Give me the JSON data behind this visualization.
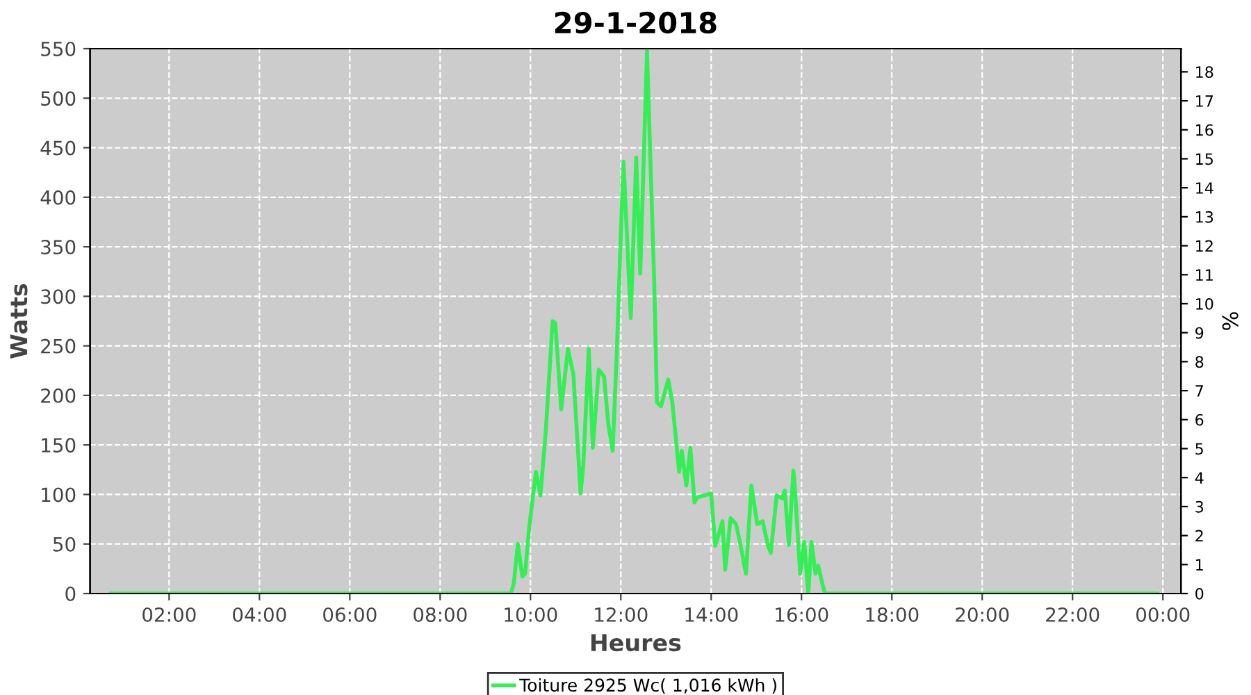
{
  "chart_data": {
    "type": "line",
    "title": "29-1-2018",
    "xlabel": "Heures",
    "ylabel": "Watts",
    "y2label": "%",
    "xlim": [
      0.25,
      24.4
    ],
    "ylim": [
      0,
      550
    ],
    "y2lim": [
      0,
      18.8
    ],
    "xticks": [
      {
        "value": 2,
        "label": "02:00"
      },
      {
        "value": 4,
        "label": "04:00"
      },
      {
        "value": 6,
        "label": "06:00"
      },
      {
        "value": 8,
        "label": "08:00"
      },
      {
        "value": 10,
        "label": "10:00"
      },
      {
        "value": 12,
        "label": "12:00"
      },
      {
        "value": 14,
        "label": "14:00"
      },
      {
        "value": 16,
        "label": "16:00"
      },
      {
        "value": 18,
        "label": "18:00"
      },
      {
        "value": 20,
        "label": "20:00"
      },
      {
        "value": 22,
        "label": "22:00"
      },
      {
        "value": 24,
        "label": "00:00"
      }
    ],
    "yticks": [
      0,
      50,
      100,
      150,
      200,
      250,
      300,
      350,
      400,
      450,
      500,
      550
    ],
    "y2ticks": [
      0,
      1,
      2,
      3,
      4,
      5,
      6,
      7,
      8,
      9,
      10,
      11,
      12,
      13,
      14,
      15,
      16,
      17,
      18
    ],
    "grid": true,
    "legend": "bottom",
    "marker": "none",
    "line_style": "solid",
    "series": [
      {
        "name": "Toiture 2925 Wc( 1,016 kWh )",
        "color": "#33ee55",
        "x": [
          0.71,
          9.57,
          9.63,
          9.72,
          9.82,
          9.88,
          9.97,
          10.12,
          10.22,
          10.34,
          10.49,
          10.55,
          10.68,
          10.83,
          10.95,
          11.11,
          11.17,
          11.29,
          11.38,
          11.51,
          11.63,
          11.72,
          11.82,
          11.91,
          12.0,
          12.06,
          12.22,
          12.34,
          12.43,
          12.58,
          12.74,
          12.8,
          12.89,
          13.05,
          13.14,
          13.29,
          13.35,
          13.45,
          13.54,
          13.63,
          13.69,
          13.85,
          14.0,
          14.09,
          14.25,
          14.31,
          14.43,
          14.55,
          14.65,
          14.77,
          14.89,
          15.02,
          15.14,
          15.26,
          15.32,
          15.45,
          15.57,
          15.63,
          15.72,
          15.82,
          15.85,
          15.97,
          16.06,
          16.15,
          16.22,
          16.31,
          16.37,
          16.46,
          16.52,
          23.88
        ],
        "values": [
          0,
          0,
          10,
          50,
          17,
          20,
          66,
          123,
          99,
          165,
          275,
          273,
          186,
          247,
          221,
          101,
          130,
          247,
          147,
          226,
          219,
          172,
          144,
          243,
          362,
          436,
          278,
          440,
          323,
          548,
          313,
          193,
          189,
          216,
          193,
          123,
          144,
          109,
          147,
          92,
          97,
          99,
          101,
          48,
          73,
          24,
          76,
          70,
          49,
          20,
          109,
          70,
          73,
          48,
          41,
          99,
          96,
          104,
          49,
          124,
          109,
          20,
          52,
          0,
          52,
          20,
          28,
          10,
          0,
          0
        ]
      }
    ]
  }
}
